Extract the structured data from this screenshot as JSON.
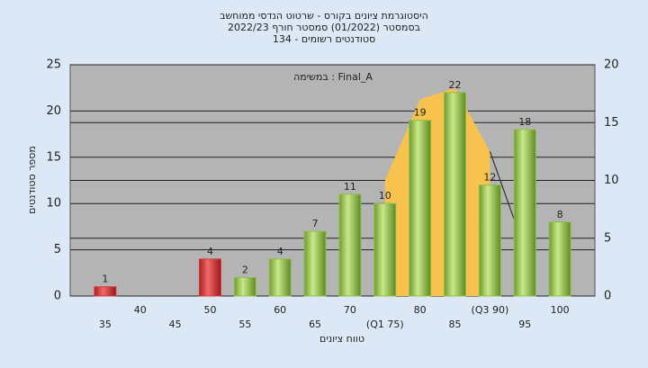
{
  "chart_data": {
    "type": "bar",
    "title": [
      "היסטוגרמת ציונים בקורס - שרטוט הנדסי ממוחשב",
      "בסמסטר  (01/2022)  סמסטר חורף 2022/23",
      "סטודנטים רשומים - 134"
    ],
    "annotation": "במשימה : Final_A",
    "x_label": "טווח ציונים",
    "y_label": "מספר סטודנטים",
    "categories": [
      "35",
      "40",
      "45",
      "50",
      "55",
      "60",
      "65",
      "70",
      "(Q1 75)",
      "80",
      "85",
      "(Q3 90)",
      "95",
      "100"
    ],
    "values": [
      1,
      0,
      0,
      4,
      2,
      4,
      7,
      11,
      10,
      19,
      22,
      12,
      18,
      8
    ],
    "colors": [
      "#d83a3a",
      "#d83a3a",
      "#d83a3a",
      "#d83a3a",
      "#8fbf4a",
      "#8fbf4a",
      "#8fbf4a",
      "#8fbf4a",
      "#8fbf4a",
      "#8fbf4a",
      "#8fbf4a",
      "#8fbf4a",
      "#8fbf4a",
      "#8fbf4a"
    ],
    "ylim": [
      0,
      25
    ],
    "yticks": [
      0,
      5,
      10,
      15,
      20,
      25
    ],
    "y2lim": [
      0,
      20
    ],
    "y2ticks": [
      0,
      5,
      10,
      15,
      20
    ],
    "area": {
      "axis": "y2",
      "color": "#f7c24e",
      "values": [
        null,
        null,
        null,
        null,
        null,
        null,
        null,
        null,
        10,
        17,
        18,
        12.5,
        null,
        null
      ]
    },
    "line": {
      "axis": "y2",
      "color": "#333333",
      "values": [
        null,
        null,
        null,
        null,
        null,
        null,
        null,
        null,
        null,
        null,
        null,
        12.5,
        4,
        null
      ]
    },
    "grid": true
  }
}
